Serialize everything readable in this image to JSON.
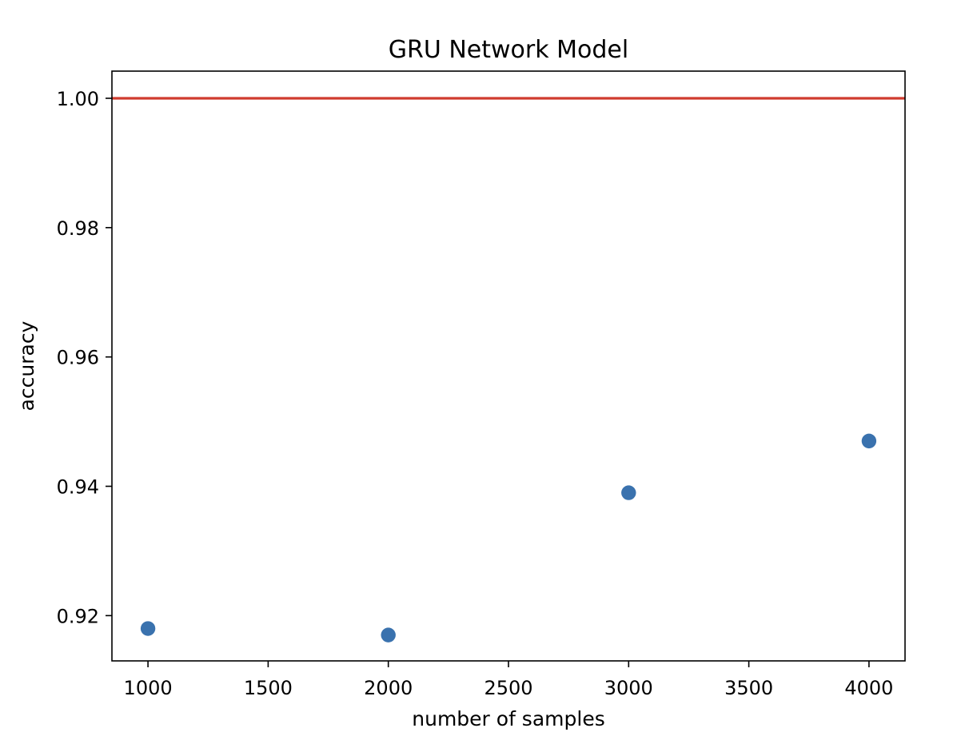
{
  "chart_data": {
    "type": "scatter",
    "title": "GRU Network Model",
    "xlabel": "number of samples",
    "ylabel": "accuracy",
    "xlim": [
      850,
      4150
    ],
    "ylim": [
      0.913,
      1.0042
    ],
    "xticks": [
      1000,
      1500,
      2000,
      2500,
      3000,
      3500,
      4000
    ],
    "yticks": [
      0.92,
      0.94,
      0.96,
      0.98,
      1.0
    ],
    "ytick_labels": [
      "0.92",
      "0.94",
      "0.96",
      "0.98",
      "1.00"
    ],
    "grid": false,
    "series": [
      {
        "type": "scatter",
        "color": "#3a72ae",
        "x": [
          1000,
          2000,
          3000,
          4000
        ],
        "y": [
          0.918,
          0.917,
          0.939,
          0.947
        ]
      }
    ],
    "reference_lines": [
      {
        "orientation": "horizontal",
        "y": 1.0,
        "color": "#d03b2e"
      }
    ]
  }
}
